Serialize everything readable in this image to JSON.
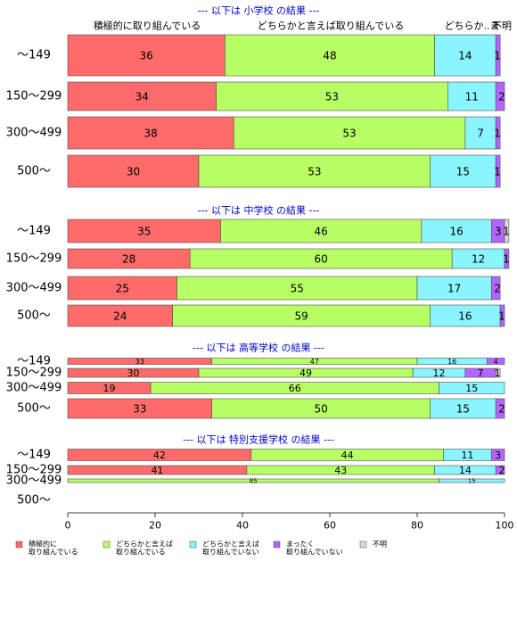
{
  "colors": {
    "section_title": "#0000cc",
    "categories": [
      "#ff6b6b",
      "#b8ff66",
      "#8af5ff",
      "#b366ff",
      "#d9d9d9"
    ],
    "outline": "#4d4d4d"
  },
  "legend": {
    "items": [
      {
        "line1": "積極的に",
        "line2": "取り組んでいる"
      },
      {
        "line1": "どちらかと言えば",
        "line2": "取り組んでいる"
      },
      {
        "line1": "どちらかと言えば",
        "line2": "取り組んでいない"
      },
      {
        "line1": "まったく",
        "line2": "取り組んでいない"
      },
      {
        "line1": "不明",
        "line2": ""
      }
    ]
  },
  "chart_data": {
    "type": "bar",
    "orientation": "horizontal",
    "stacked": true,
    "xlim": [
      0,
      100
    ],
    "x_ticks": [
      "0",
      "20",
      "40",
      "60",
      "80",
      "100"
    ],
    "top_headers": [
      "積極的に取り組んでいる",
      "どちらかと言えば取り組んでいる",
      "どちらか..",
      "ま",
      "不明"
    ],
    "series_names": [
      "積極的に取り組んでいる",
      "どちらかと言えば取り組んでいる",
      "どちらかと言えば取り組んでいない",
      "まったく取り組んでいない",
      "不明"
    ],
    "panels": [
      {
        "title": "--- 以下は 小学校 の結果 ---",
        "rows": [
          {
            "label": "〜149",
            "values": [
              36,
              48,
              14,
              1,
              0
            ]
          },
          {
            "label": "150〜299",
            "values": [
              34,
              53,
              11,
              2,
              0
            ]
          },
          {
            "label": "300〜499",
            "values": [
              38,
              53,
              7,
              1,
              0
            ]
          },
          {
            "label": "500〜",
            "values": [
              30,
              53,
              15,
              1,
              0
            ]
          }
        ]
      },
      {
        "title": "--- 以下は 中学校 の結果 ---",
        "rows": [
          {
            "label": "〜149",
            "values": [
              35,
              46,
              16,
              3,
              1
            ]
          },
          {
            "label": "150〜299",
            "values": [
              28,
              60,
              12,
              1,
              0
            ]
          },
          {
            "label": "300〜499",
            "values": [
              25,
              55,
              17,
              2,
              0
            ]
          },
          {
            "label": "500〜",
            "values": [
              24,
              59,
              16,
              1,
              0
            ]
          }
        ]
      },
      {
        "title": "--- 以下は 高等学校 の結果 ---",
        "rows": [
          {
            "label": "〜149",
            "values": [
              33,
              47,
              16,
              4,
              0
            ]
          },
          {
            "label": "150〜299",
            "values": [
              30,
              49,
              12,
              7,
              1
            ]
          },
          {
            "label": "300〜499",
            "values": [
              19,
              66,
              15,
              0,
              0
            ]
          },
          {
            "label": "500〜",
            "values": [
              33,
              50,
              15,
              2,
              0
            ]
          }
        ]
      },
      {
        "title": "--- 以下は 特別支援学校 の結果 ---",
        "rows": [
          {
            "label": "〜149",
            "values": [
              42,
              44,
              11,
              3,
              0
            ]
          },
          {
            "label": "150〜299",
            "values": [
              41,
              43,
              14,
              2,
              0
            ]
          },
          {
            "label": "300〜499",
            "values": [
              0,
              85,
              15,
              0,
              0
            ]
          },
          {
            "label": "500〜",
            "values": [
              0,
              0,
              0,
              0,
              0
            ]
          }
        ]
      }
    ]
  }
}
